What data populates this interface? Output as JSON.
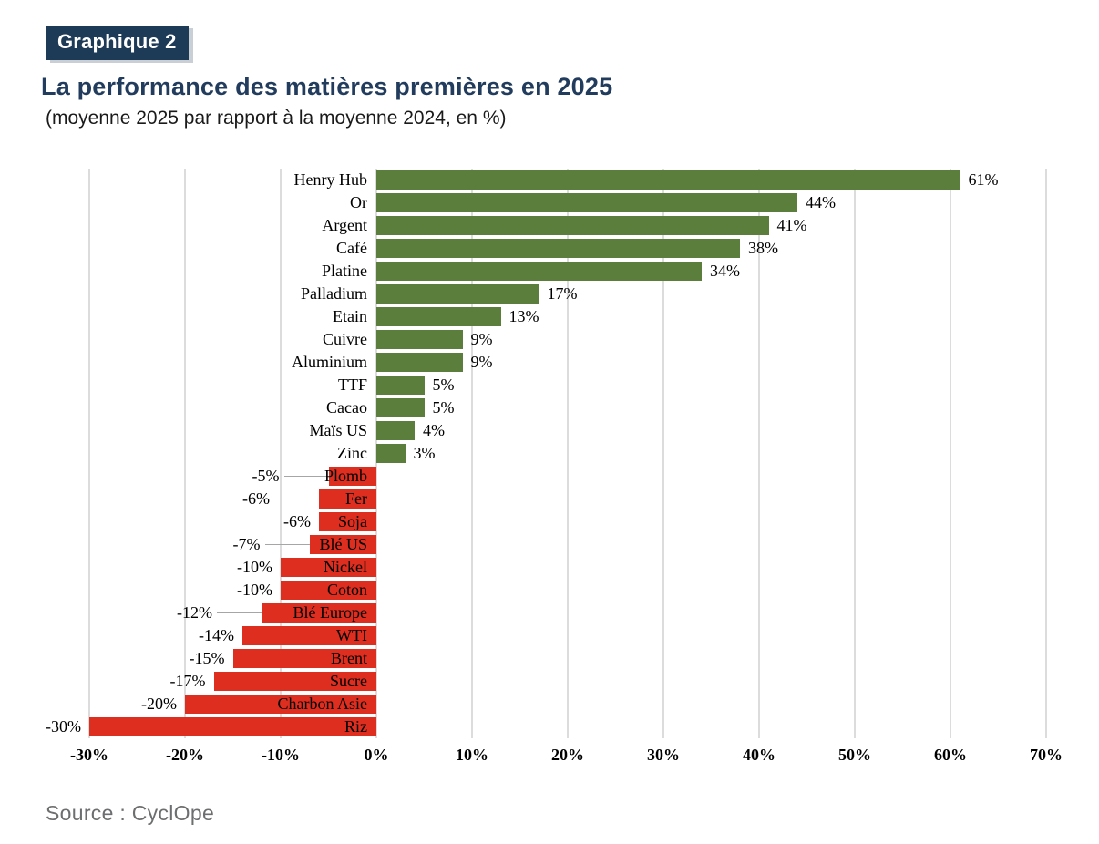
{
  "header": {
    "badge": "Graphique 2",
    "title": "La performance des matières premières en 2025",
    "subtitle": "(moyenne 2025 par rapport à la moyenne 2024, en %)"
  },
  "footer": {
    "source": "Source : CyclOpe"
  },
  "colors": {
    "positive_bar": "#5b7e3c",
    "negative_bar": "#dd2e20",
    "title_text": "#223c5e",
    "badge_bg": "#1d3a57",
    "badge_text": "#ffffff",
    "grid_line": "#dcdcdc",
    "leader_line": "#a6a6a6",
    "source_text": "#6d6e70"
  },
  "chart_data": {
    "type": "bar",
    "orientation": "horizontal",
    "title": "La performance des matières premières en 2025",
    "subtitle": "(moyenne 2025 par rapport à la moyenne 2024, en %)",
    "xlabel": "",
    "ylabel": "",
    "xlim": [
      -30,
      70
    ],
    "x_ticks": [
      -30,
      -20,
      -10,
      0,
      10,
      20,
      30,
      40,
      50,
      60,
      70
    ],
    "x_tick_labels": [
      "-30%",
      "-20%",
      "-10%",
      "0%",
      "10%",
      "20%",
      "30%",
      "40%",
      "50%",
      "60%",
      "70%"
    ],
    "grid": "vertical",
    "legend": "none",
    "categories": [
      "Henry Hub",
      "Or",
      "Argent",
      "Café",
      "Platine",
      "Palladium",
      "Etain",
      "Cuivre",
      "Aluminium",
      "TTF",
      "Cacao",
      "Maïs US",
      "Zinc",
      "Plomb",
      "Fer",
      "Soja",
      "Blé US",
      "Nickel",
      "Coton",
      "Blé Europe",
      "WTI",
      "Brent",
      "Sucre",
      "Charbon Asie",
      "Riz"
    ],
    "values": [
      61,
      44,
      41,
      38,
      34,
      17,
      13,
      9,
      9,
      5,
      5,
      4,
      3,
      -5,
      -6,
      -6,
      -7,
      -10,
      -10,
      -12,
      -14,
      -15,
      -17,
      -20,
      -30
    ],
    "value_labels": [
      "61%",
      "44%",
      "41%",
      "38%",
      "34%",
      "17%",
      "13%",
      "9%",
      "9%",
      "5%",
      "5%",
      "4%",
      "3%",
      "-5%",
      "-6%",
      "-6%",
      "-7%",
      "-10%",
      "-10%",
      "-12%",
      "-14%",
      "-15%",
      "-17%",
      "-20%",
      "-30%"
    ],
    "leader_line_categories": [
      "Plomb",
      "Fer",
      "Blé US",
      "Blé Europe"
    ]
  }
}
